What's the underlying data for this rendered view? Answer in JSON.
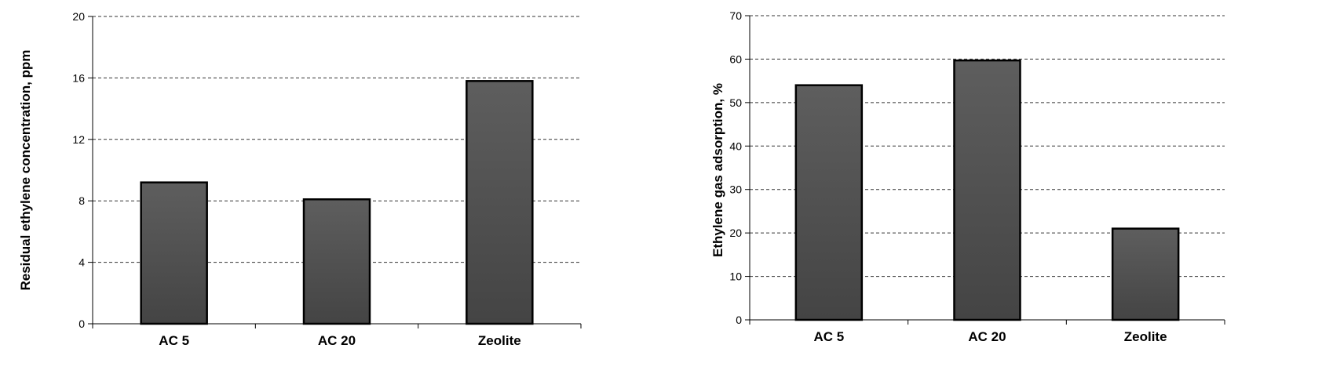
{
  "chart_data": [
    {
      "type": "bar",
      "categories": [
        "AC 5",
        "AC 20",
        "Zeolite"
      ],
      "series": [
        {
          "values": [
            9.2,
            8.1,
            15.8
          ]
        }
      ],
      "title": "",
      "xlabel": "",
      "ylabel": "Residual ethylene concentration, ppm",
      "ylim": [
        0,
        20
      ],
      "yticks": [
        0,
        4,
        8,
        12,
        16,
        20
      ],
      "grid": true,
      "bar_color": "#555555"
    },
    {
      "type": "bar",
      "categories": [
        "AC 5",
        "AC 20",
        "Zeolite"
      ],
      "series": [
        {
          "values": [
            54,
            59.7,
            21
          ]
        }
      ],
      "title": "",
      "xlabel": "",
      "ylabel": "Ethylene gas adsorption, %",
      "ylim": [
        0,
        70
      ],
      "yticks": [
        0,
        10,
        20,
        30,
        40,
        50,
        60,
        70
      ],
      "grid": true,
      "bar_color": "#555555"
    }
  ]
}
